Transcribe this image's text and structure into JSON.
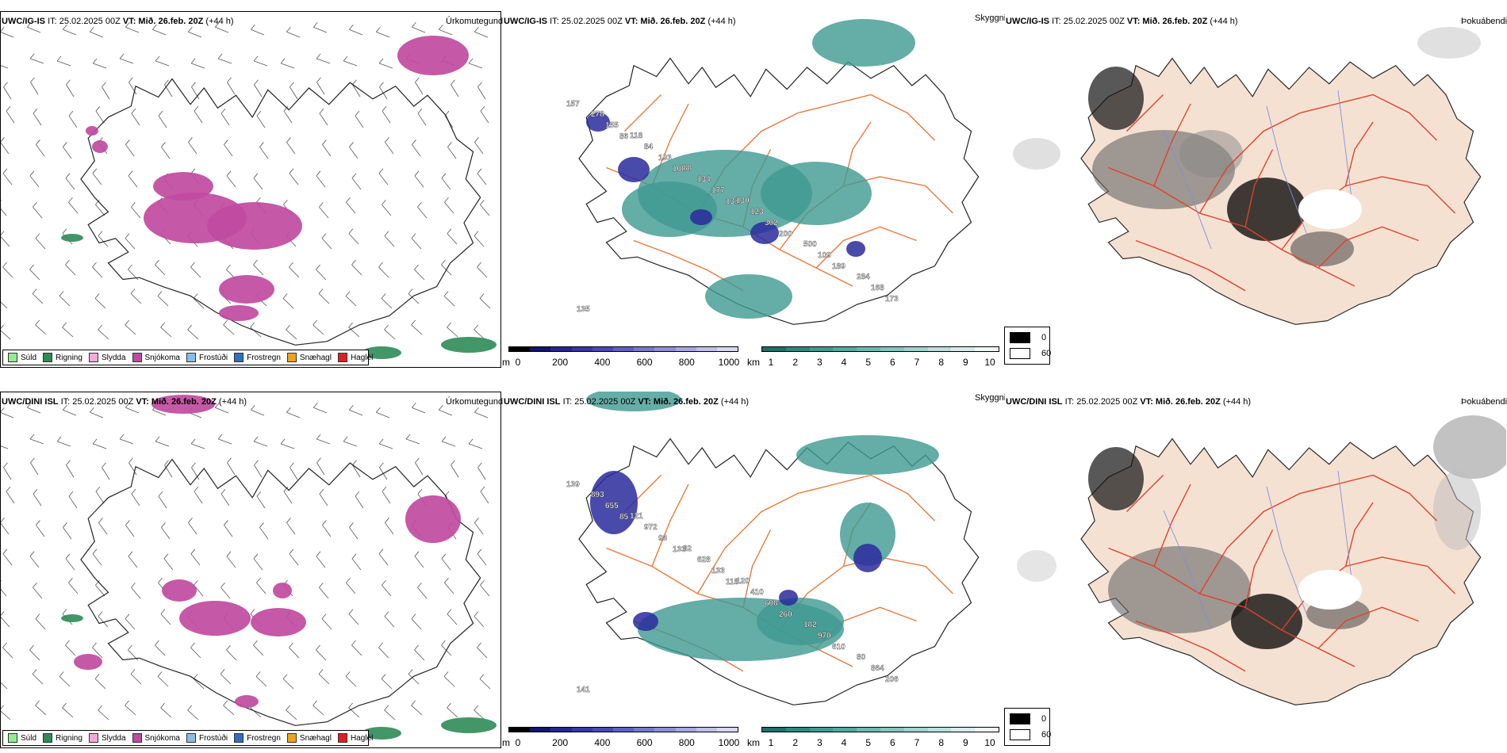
{
  "rows": [
    {
      "precip": {
        "model": "UWC/IG-IS",
        "it": "IT: 25.02.2025 00Z",
        "vt_label": "VT:",
        "vt_value": "Mið. 26.feb. 20Z",
        "lead": "(+44 h)",
        "variable": "Úrkomutegund"
      },
      "vis": {
        "model": "UWC/IG-IS",
        "it": "IT: 25.02.2025 00Z",
        "vt_label": "VT:",
        "vt_value": "Mið. 26.feb. 20Z",
        "lead": "(+44 h)",
        "variable": "Skyggni",
        "labels": [
          "157",
          "86",
          "108",
          "131",
          "200",
          "189",
          "173",
          "155",
          "193",
          "177",
          "302",
          "109",
          "168",
          "278",
          "84",
          "134",
          "123",
          "500",
          "284",
          "135",
          "118",
          "88",
          "130"
        ]
      },
      "fog": {
        "model": "UWC/IG-IS",
        "it": "IT: 25.02.2025 00Z",
        "vt_label": "VT:",
        "vt_value": "Mið. 26.feb. 20Z",
        "lead": "(+44 h)",
        "variable": "Þokuábendi"
      }
    },
    {
      "precip": {
        "model": "UWC/DINI ISL",
        "it": "IT: 25.02.2025 00Z",
        "vt_label": "VT:",
        "vt_value": "Mið. 26.feb. 20Z",
        "lead": "(+44 h)",
        "variable": "Úrkomutegund"
      },
      "vis": {
        "model": "UWC/DINI ISL",
        "it": "IT: 25.02.2025 00Z",
        "vt_label": "VT:",
        "vt_value": "Mið. 26.feb. 20Z",
        "lead": "(+44 h)",
        "variable": "Skyggni",
        "labels": [
          "139",
          "85",
          "133",
          "115",
          "260",
          "610",
          "206",
          "655",
          "93",
          "133",
          "608",
          "970",
          "864",
          "893",
          "972",
          "628",
          "410",
          "182",
          "80",
          "141",
          "121",
          "82",
          "120"
        ]
      },
      "fog": {
        "model": "UWC/DINI ISL",
        "it": "IT: 25.02.2025 00Z",
        "vt_label": "VT:",
        "vt_value": "Mið. 26.feb. 20Z",
        "lead": "(+44 h)",
        "variable": "Þokuábendi"
      }
    }
  ],
  "precip_legend": [
    {
      "label": "Súld",
      "color": "#90ee90"
    },
    {
      "label": "Rigning",
      "color": "#2e8b57"
    },
    {
      "label": "Slydda",
      "color": "#f4a9d8"
    },
    {
      "label": "Snjókoma",
      "color": "#c04aa0"
    },
    {
      "label": "Frostúði",
      "color": "#87bde8"
    },
    {
      "label": "Frostregn",
      "color": "#2f6fbe"
    },
    {
      "label": "Snæhagl",
      "color": "#f0a020"
    },
    {
      "label": "Haglél",
      "color": "#e02020"
    }
  ],
  "colorbar_m": {
    "unit": "m",
    "ticks": [
      "0",
      "200",
      "400",
      "600",
      "800",
      "1000"
    ],
    "colors": [
      "#000000",
      "#14146b",
      "#26268f",
      "#3636a8",
      "#4848b8",
      "#6060c4",
      "#7878cc",
      "#9090d6",
      "#a8a8e0",
      "#c0c0ea",
      "#d8d8f4"
    ]
  },
  "colorbar_km": {
    "unit": "km",
    "ticks": [
      "1",
      "2",
      "3",
      "4",
      "5",
      "6",
      "7",
      "8",
      "9",
      "10"
    ],
    "colors": [
      "#1f6f6a",
      "#2e8680",
      "#3f9891",
      "#55a8a1",
      "#6db7b1",
      "#86c5c0",
      "#a0d3cf",
      "#bbe0dd",
      "#d5ecea",
      "#eef8f7"
    ]
  },
  "fog_legend": [
    {
      "label": "0",
      "color": "#000000"
    },
    {
      "label": "60",
      "color": "#ffffff"
    }
  ],
  "colors": {
    "land_fog": "#f5e1d2",
    "road": "#e8783a",
    "road_red": "#e0402a",
    "river": "#7a90e0",
    "snow": "#c04aa0",
    "rain": "#2e8b57",
    "vis": "#3f9891",
    "vis_dark": "#2a2a9c"
  }
}
